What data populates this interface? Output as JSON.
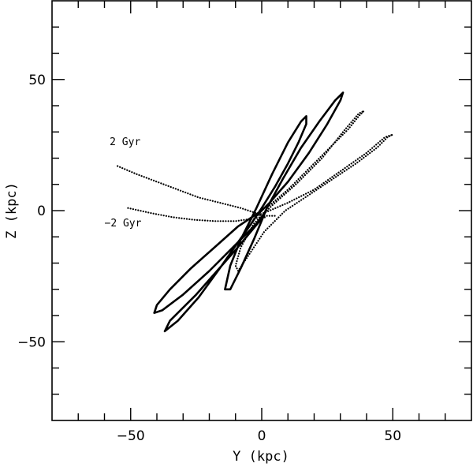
{
  "chart_data": {
    "type": "line",
    "title": "",
    "xlabel": "Y (kpc)",
    "ylabel": "Z (kpc)",
    "xlim": [
      -80,
      80
    ],
    "ylim": [
      -80,
      80
    ],
    "xticks": [
      -50,
      0,
      50
    ],
    "yticks": [
      -50,
      0,
      50
    ],
    "xtick_labels": [
      "−50",
      "0",
      "50"
    ],
    "ytick_labels": [
      "−50",
      "0",
      "50"
    ],
    "minor_tick_step": 10,
    "grid": false,
    "legend": "none",
    "annotations": [
      {
        "text": "2 Gyr",
        "x": -58,
        "y": 25
      },
      {
        "text": "−2 Gyr",
        "x": -60,
        "y": -6
      }
    ],
    "series": [
      {
        "style": "solid",
        "color": "#000000",
        "x": [
          0,
          -9,
          -18,
          -27,
          -35,
          -40,
          -41,
          -38,
          -30,
          -20,
          -10,
          -2,
          1,
          2,
          0,
          -10,
          -25,
          -35,
          -37,
          -32,
          -24,
          -16,
          -9,
          -4,
          0,
          5,
          10,
          14,
          17,
          17,
          15,
          10,
          4,
          -2,
          -8,
          -12,
          -14,
          -12,
          -8,
          -3,
          2,
          8,
          15,
          22,
          28,
          31,
          30,
          25,
          18,
          10,
          3,
          -2
        ],
        "y": [
          0,
          -6,
          -14,
          -22,
          -30,
          -36,
          -39,
          -38,
          -32,
          -23,
          -13,
          -5,
          -1,
          1,
          -3,
          -15,
          -32,
          -42,
          -46,
          -42,
          -33,
          -22,
          -12,
          -5,
          1,
          9,
          18,
          26,
          33,
          36,
          34,
          26,
          14,
          1,
          -11,
          -21,
          -30,
          -30,
          -22,
          -11,
          1,
          12,
          24,
          34,
          42,
          45,
          42,
          33,
          22,
          11,
          3,
          -2
        ]
      },
      {
        "style": "dotted",
        "color": "#000000",
        "x": [
          3,
          10,
          18,
          26,
          33,
          37,
          39,
          37,
          31,
          23,
          13,
          4,
          -3,
          -8,
          -10,
          -9,
          -5,
          1,
          9,
          18,
          27,
          36,
          44,
          48,
          50,
          47,
          40,
          30,
          20,
          10,
          3,
          -2
        ],
        "y": [
          2,
          8,
          16,
          24,
          31,
          36,
          38,
          37,
          30,
          20,
          10,
          2,
          -5,
          -14,
          -21,
          -23,
          -17,
          -8,
          0,
          6,
          12,
          18,
          24,
          28,
          29,
          28,
          22,
          15,
          8,
          3,
          0,
          -2
        ]
      },
      {
        "style": "dotted",
        "color": "#000000",
        "x": [
          -55,
          -48,
          -40,
          -32,
          -24,
          -16,
          -8,
          -2,
          2
        ],
        "y": [
          17,
          14,
          11,
          8,
          5,
          3,
          1,
          -1,
          -3
        ]
      },
      {
        "style": "dotted",
        "color": "#000000",
        "x": [
          -51,
          -42,
          -34,
          -26,
          -18,
          -10,
          -3,
          2,
          5
        ],
        "y": [
          1,
          -1,
          -2.5,
          -3.5,
          -4,
          -4,
          -3,
          -2,
          -2
        ]
      }
    ]
  }
}
